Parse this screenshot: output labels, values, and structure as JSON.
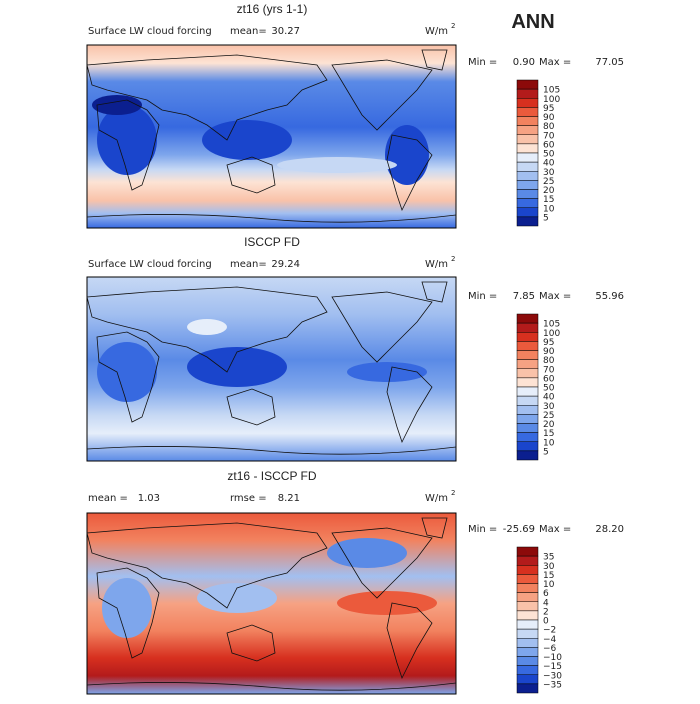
{
  "title": "ANN",
  "colors": [
    "#8c0a0a",
    "#b31b1b",
    "#d7301f",
    "#eb5a3c",
    "#f2825f",
    "#f6a283",
    "#f9c2a9",
    "#fde3d4",
    "#e6eefa",
    "#c6d8f4",
    "#a2bff0",
    "#7ea6ec",
    "#5a8ae6",
    "#3769e0",
    "#1a45cc",
    "#0b1f8f"
  ],
  "panels": [
    {
      "title": "zt16 (yrs 1-1)",
      "variable": "Surface LW cloud forcing",
      "mean_label": "mean=",
      "mean": "30.27",
      "units": "W/m",
      "units_sup": "2",
      "min_label": "Min =",
      "min": "0.90",
      "max_label": "Max =",
      "max": "77.05",
      "levels": [
        "105",
        "100",
        "95",
        "90",
        "80",
        "70",
        "60",
        "50",
        "40",
        "30",
        "25",
        "20",
        "15",
        "10",
        "5"
      ]
    },
    {
      "title": "ISCCP FD",
      "variable": "Surface LW cloud forcing",
      "mean_label": "mean=",
      "mean": "29.24",
      "units": "W/m",
      "units_sup": "2",
      "min_label": "Min =",
      "min": "7.85",
      "max_label": "Max =",
      "max": "55.96",
      "levels": [
        "105",
        "100",
        "95",
        "90",
        "80",
        "70",
        "60",
        "50",
        "40",
        "30",
        "25",
        "20",
        "15",
        "10",
        "5"
      ]
    },
    {
      "title": "zt16 - ISCCP FD",
      "mean_label": "mean =",
      "mean": "1.03",
      "rmse_label": "rmse =",
      "rmse": "8.21",
      "units": "W/m",
      "units_sup": "2",
      "min_label": "Min =",
      "min": "-25.69",
      "max_label": "Max =",
      "max": "28.20",
      "levels": [
        "35",
        "30",
        "15",
        "10",
        "6",
        "4",
        "2",
        "0",
        "−2",
        "−4",
        "−6",
        "−10",
        "−15",
        "−30",
        "−35"
      ]
    }
  ]
}
